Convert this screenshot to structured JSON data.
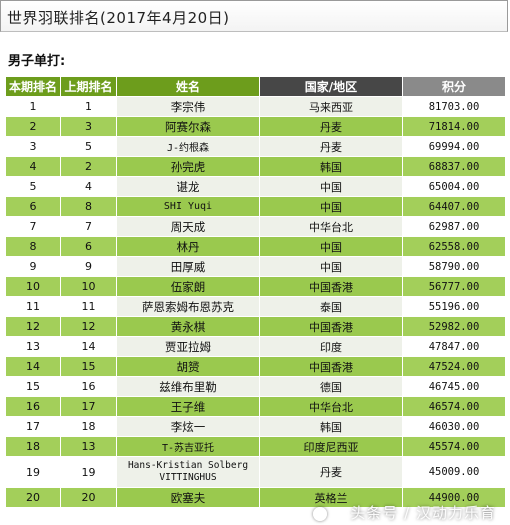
{
  "header": {
    "title": "世界羽联排名(2017年4月20日)"
  },
  "section": {
    "title": "男子单打:"
  },
  "table": {
    "columns": [
      "本期排名",
      "上期排名",
      "姓名",
      "国家/地区",
      "积分"
    ],
    "rows": [
      {
        "current": "1",
        "previous": "1",
        "name": "李宗伟",
        "country": "马来西亚",
        "points": "81703.00"
      },
      {
        "current": "2",
        "previous": "3",
        "name": "阿赛尔森",
        "country": "丹麦",
        "points": "71814.00"
      },
      {
        "current": "3",
        "previous": "5",
        "name": "J-约根森",
        "country": "丹麦",
        "points": "69994.00"
      },
      {
        "current": "4",
        "previous": "2",
        "name": "孙完虎",
        "country": "韩国",
        "points": "68837.00"
      },
      {
        "current": "5",
        "previous": "4",
        "name": "谌龙",
        "country": "中国",
        "points": "65004.00"
      },
      {
        "current": "6",
        "previous": "8",
        "name": "SHI Yuqi",
        "country": "中国",
        "points": "64407.00"
      },
      {
        "current": "7",
        "previous": "7",
        "name": "周天成",
        "country": "中华台北",
        "points": "62987.00"
      },
      {
        "current": "8",
        "previous": "6",
        "name": "林丹",
        "country": "中国",
        "points": "62558.00"
      },
      {
        "current": "9",
        "previous": "9",
        "name": "田厚威",
        "country": "中国",
        "points": "58790.00"
      },
      {
        "current": "10",
        "previous": "10",
        "name": "伍家朗",
        "country": "中国香港",
        "points": "56777.00"
      },
      {
        "current": "11",
        "previous": "11",
        "name": "萨恩索姆布恩苏克",
        "country": "泰国",
        "points": "55196.00"
      },
      {
        "current": "12",
        "previous": "12",
        "name": "黄永棋",
        "country": "中国香港",
        "points": "52982.00"
      },
      {
        "current": "13",
        "previous": "14",
        "name": "贾亚拉姆",
        "country": "印度",
        "points": "47847.00"
      },
      {
        "current": "14",
        "previous": "15",
        "name": "胡赟",
        "country": "中国香港",
        "points": "47524.00"
      },
      {
        "current": "15",
        "previous": "16",
        "name": "兹维布里勒",
        "country": "德国",
        "points": "46745.00"
      },
      {
        "current": "16",
        "previous": "17",
        "name": "王子维",
        "country": "中华台北",
        "points": "46574.00"
      },
      {
        "current": "17",
        "previous": "18",
        "name": "李炫一",
        "country": "韩国",
        "points": "46030.00"
      },
      {
        "current": "18",
        "previous": "13",
        "name": "T-苏吉亚托",
        "country": "印度尼西亚",
        "points": "45574.00"
      },
      {
        "current": "19",
        "previous": "19",
        "name": "Hans-Kristian Solberg VITTINGHUS",
        "country": "丹麦",
        "points": "45009.00"
      },
      {
        "current": "20",
        "previous": "20",
        "name": "欧塞夫",
        "country": "英格兰",
        "points": "44900.00"
      }
    ]
  },
  "watermark": {
    "text": "头条号 / 汉动力乐育"
  },
  "colors": {
    "header_green": "#6d9d1c",
    "header_dark": "#474747",
    "row_green": "#a3cf5a"
  }
}
